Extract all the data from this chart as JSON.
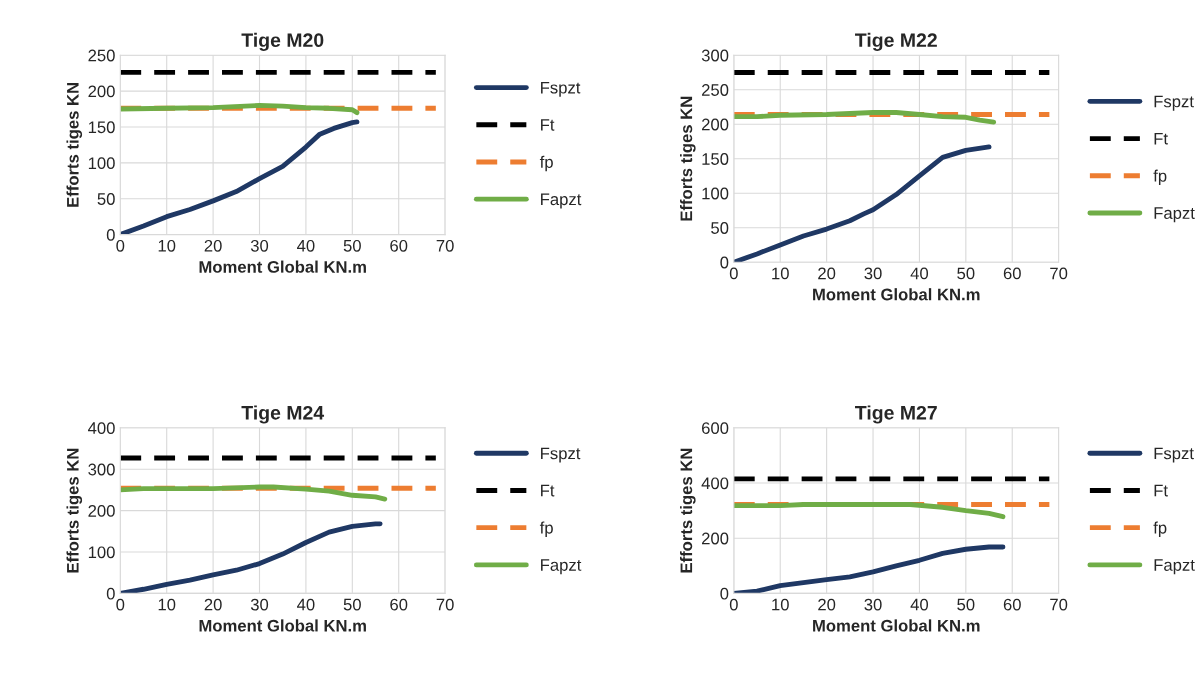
{
  "chart_data": [
    {
      "type": "line",
      "title": "Tige M20",
      "xlabel": "Moment Global KN.m",
      "ylabel": "Efforts tiges KN",
      "xlim": [
        0,
        70
      ],
      "xticks": [
        0,
        10,
        20,
        30,
        40,
        50,
        60,
        70
      ],
      "ylim": [
        0,
        250
      ],
      "yticks": [
        0,
        50,
        100,
        150,
        200,
        250
      ],
      "grid": true,
      "legend": "right",
      "series": [
        {
          "name": "Fspzt",
          "color": "#1f3864",
          "line_style": "solid",
          "x": [
            0,
            5,
            10,
            15,
            20,
            25,
            30,
            35,
            40,
            43,
            46,
            50,
            51
          ],
          "values": [
            0,
            12,
            25,
            35,
            47,
            60,
            78,
            95,
            122,
            140,
            148,
            156,
            157
          ]
        },
        {
          "name": "Ft",
          "color": "#000000",
          "line_style": "dashed",
          "x": [
            0,
            68
          ],
          "values": [
            226,
            226
          ]
        },
        {
          "name": "fp",
          "color": "#ed7d31",
          "line_style": "dashed",
          "x": [
            0,
            68
          ],
          "values": [
            176,
            176
          ]
        },
        {
          "name": "Fapzt",
          "color": "#70ad47",
          "line_style": "solid",
          "x": [
            0,
            10,
            20,
            30,
            35,
            40,
            45,
            50,
            51
          ],
          "values": [
            175,
            176,
            177,
            180,
            179,
            177,
            176,
            174,
            170
          ]
        }
      ]
    },
    {
      "type": "line",
      "title": "Tige M22",
      "xlabel": "Moment Global KN.m",
      "ylabel": "Efforts tiges KN",
      "xlim": [
        0,
        70
      ],
      "xticks": [
        0,
        10,
        20,
        30,
        40,
        50,
        60,
        70
      ],
      "ylim": [
        0,
        300
      ],
      "yticks": [
        0,
        50,
        100,
        150,
        200,
        250,
        300
      ],
      "grid": true,
      "legend": "right",
      "series": [
        {
          "name": "Fspzt",
          "color": "#1f3864",
          "line_style": "solid",
          "x": [
            0,
            5,
            10,
            15,
            20,
            25,
            28,
            30,
            35,
            40,
            45,
            50,
            55
          ],
          "values": [
            0,
            12,
            25,
            38,
            48,
            60,
            70,
            76,
            98,
            125,
            152,
            162,
            167
          ]
        },
        {
          "name": "Ft",
          "color": "#000000",
          "line_style": "dashed",
          "x": [
            0,
            68
          ],
          "values": [
            275,
            275
          ]
        },
        {
          "name": "fp",
          "color": "#ed7d31",
          "line_style": "dashed",
          "x": [
            0,
            68
          ],
          "values": [
            214,
            214
          ]
        },
        {
          "name": "Fapzt",
          "color": "#70ad47",
          "line_style": "solid",
          "x": [
            0,
            5,
            10,
            20,
            30,
            35,
            40,
            45,
            50,
            53,
            56
          ],
          "values": [
            211,
            211,
            213,
            214,
            217,
            217,
            214,
            211,
            210,
            206,
            203
          ]
        }
      ]
    },
    {
      "type": "line",
      "title": "Tige M24",
      "xlabel": "Moment Global KN.m",
      "ylabel": "Efforts tiges KN",
      "xlim": [
        0,
        70
      ],
      "xticks": [
        0,
        10,
        20,
        30,
        40,
        50,
        60,
        70
      ],
      "ylim": [
        0,
        400
      ],
      "yticks": [
        0,
        100,
        200,
        300,
        400
      ],
      "grid": true,
      "legend": "right",
      "series": [
        {
          "name": "Fspzt",
          "color": "#1f3864",
          "line_style": "solid",
          "x": [
            0,
            5,
            10,
            15,
            20,
            25,
            30,
            35,
            40,
            45,
            50,
            55,
            56
          ],
          "values": [
            0,
            10,
            22,
            32,
            45,
            56,
            72,
            95,
            123,
            148,
            162,
            168,
            168
          ]
        },
        {
          "name": "Ft",
          "color": "#000000",
          "line_style": "dashed",
          "x": [
            0,
            68
          ],
          "values": [
            327,
            327
          ]
        },
        {
          "name": "fp",
          "color": "#ed7d31",
          "line_style": "dashed",
          "x": [
            0,
            68
          ],
          "values": [
            254,
            254
          ]
        },
        {
          "name": "Fapzt",
          "color": "#70ad47",
          "line_style": "solid",
          "x": [
            0,
            5,
            20,
            30,
            33,
            40,
            45,
            50,
            55,
            57
          ],
          "values": [
            250,
            253,
            253,
            257,
            257,
            252,
            247,
            237,
            233,
            228
          ]
        }
      ]
    },
    {
      "type": "line",
      "title": "Tige M27",
      "xlabel": "Moment Global KN.m",
      "ylabel": "Efforts tiges KN",
      "xlim": [
        0,
        70
      ],
      "xticks": [
        0,
        10,
        20,
        30,
        40,
        50,
        60,
        70
      ],
      "ylim": [
        0,
        600
      ],
      "yticks": [
        0,
        200,
        400,
        600
      ],
      "grid": true,
      "legend": "right",
      "series": [
        {
          "name": "Fspzt",
          "color": "#1f3864",
          "line_style": "solid",
          "x": [
            0,
            5,
            10,
            20,
            25,
            30,
            35,
            40,
            45,
            50,
            55,
            58
          ],
          "values": [
            0,
            8,
            28,
            50,
            60,
            78,
            100,
            120,
            145,
            160,
            168,
            168
          ]
        },
        {
          "name": "Ft",
          "color": "#000000",
          "line_style": "dashed",
          "x": [
            0,
            68
          ],
          "values": [
            415,
            415
          ]
        },
        {
          "name": "fp",
          "color": "#ed7d31",
          "line_style": "dashed",
          "x": [
            0,
            68
          ],
          "values": [
            322,
            322
          ]
        },
        {
          "name": "Fapzt",
          "color": "#70ad47",
          "line_style": "solid",
          "x": [
            0,
            10,
            15,
            30,
            38,
            45,
            50,
            55,
            58
          ],
          "values": [
            318,
            318,
            322,
            322,
            322,
            312,
            300,
            290,
            278
          ]
        }
      ]
    }
  ]
}
